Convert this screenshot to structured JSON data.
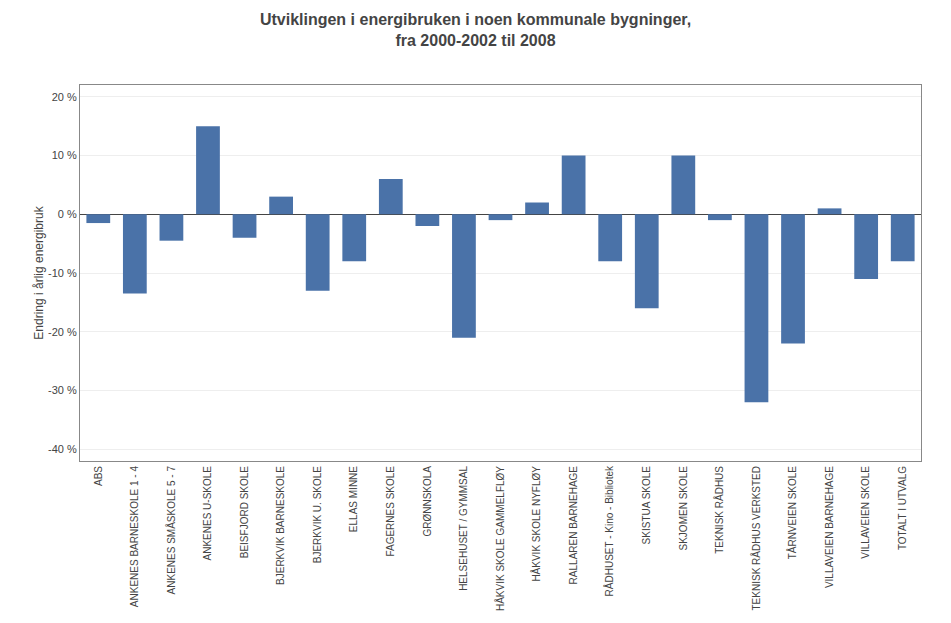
{
  "chart_data": {
    "type": "bar",
    "title": "Utviklingen i energibruken i noen kommunale bygninger,\nfra 2000-2002 til 2008",
    "ylabel": "Endring i årlig energibruk",
    "categories": [
      "ABS",
      "ANKENES BARNESKOLE 1 - 4",
      "ANKENES SMÅSKOLE 5 - 7",
      "ANKENES U-SKOLE",
      "BEISFJORD SKOLE",
      "BJERKVIK BARNESKOLE",
      "BJERKVIK U. SKOLE",
      "ELLAS MINNE",
      "FAGERNES SKOLE",
      "GRØNNSKOLA",
      "HELSEHUSET / GYMMSAL",
      "HÅKVIK SKOLE GAMMELFLØY",
      "HÅKVIK SKOLE NYFLØY",
      "RALLAREN BARNEHAGE",
      "RÅDHUSET - Kino - Bibliotek",
      "SKISTUA SKOLE",
      "SKJOMEN SKOLE",
      "TEKNISK RÅDHUS",
      "TEKNISK RÅDHUS VERKSTED",
      "TÅRNVEIEN SKOLE",
      "VILLAVEIEN BARNEHAGE",
      "VILLAVEIEN SKOLE",
      "TOTALT I UTVALG"
    ],
    "values": [
      -1.5,
      -13.5,
      -4.5,
      15.0,
      -4.0,
      3.0,
      -13.0,
      -8.0,
      6.0,
      -2.0,
      -21.0,
      -1.0,
      2.0,
      10.0,
      -8.0,
      -16.0,
      10.0,
      -1.0,
      -32.0,
      -22.0,
      1.0,
      -11.0,
      -8.0
    ],
    "color": "#4a72a8",
    "ylim": [
      -42,
      22
    ],
    "yticks": [
      {
        "value": -40,
        "label": "-40 %"
      },
      {
        "value": -30,
        "label": "-30 %"
      },
      {
        "value": -20,
        "label": "-20 %"
      },
      {
        "value": -10,
        "label": "-10 %"
      },
      {
        "value": 0,
        "label": "0 %"
      },
      {
        "value": 10,
        "label": "10 %"
      },
      {
        "value": 20,
        "label": "20 %"
      }
    ],
    "grid": true
  }
}
